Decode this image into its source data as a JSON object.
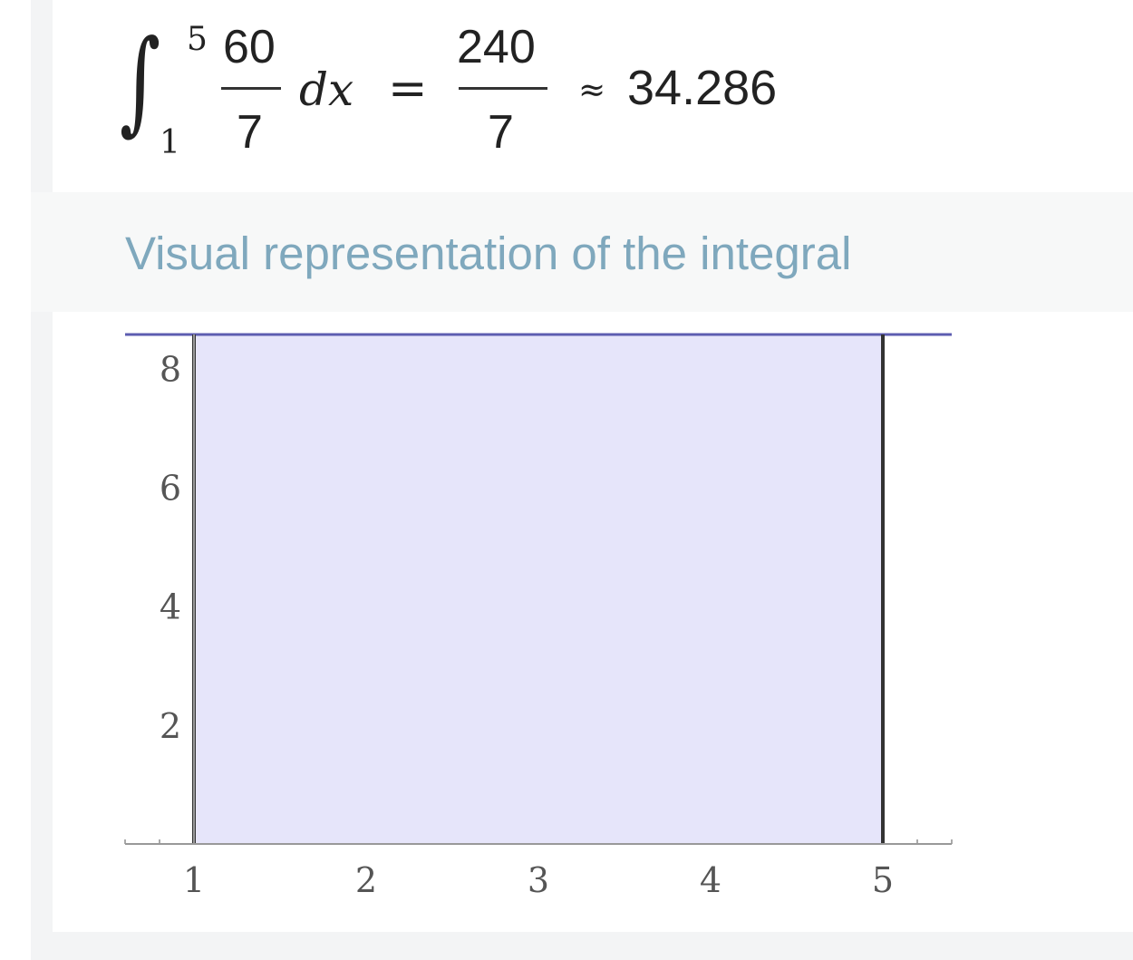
{
  "result": {
    "integral_sign": "∫",
    "upper_limit": "5",
    "lower_limit": "1",
    "integrand_numerator": "60",
    "integrand_denominator": "7",
    "differential": "dx",
    "equals": "=",
    "result_numerator": "240",
    "result_denominator": "7",
    "approx_symbol": "≈",
    "approx_value": "34.286"
  },
  "plot_pod": {
    "title": "Visual representation of the integral"
  },
  "chart_data": {
    "type": "area",
    "x": [
      1,
      5
    ],
    "y": [
      8.571428571,
      8.571428571
    ],
    "xlim": [
      0.6,
      5.4
    ],
    "ylim": [
      0,
      8.571428571
    ],
    "xticks": [
      1,
      2,
      3,
      4,
      5
    ],
    "yticks": [
      2,
      4,
      6,
      8
    ],
    "fill_color": "#e6e5fa",
    "line_color": "#5d5db0",
    "grid": false
  }
}
